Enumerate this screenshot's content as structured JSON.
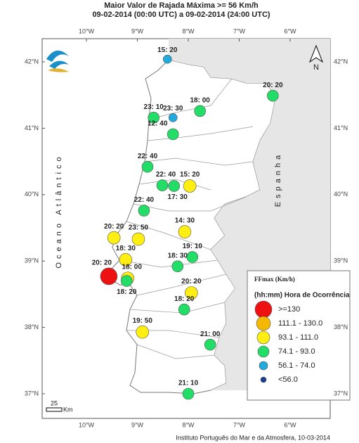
{
  "header": {
    "title": "Maior Valor de Rajada Máxima >= 56 Km/h",
    "subtitle": "09-02-2014 (00:00 UTC) a 09-02-2014 (24:00 UTC)"
  },
  "map": {
    "lon_ticks": [
      {
        "value": -10,
        "label": "10°W"
      },
      {
        "value": -9,
        "label": "9°W"
      },
      {
        "value": -8,
        "label": "8°W"
      },
      {
        "value": -7,
        "label": "7°W"
      },
      {
        "value": -6,
        "label": "6°W"
      }
    ],
    "lat_ticks": [
      {
        "value": 42,
        "label": "42°N"
      },
      {
        "value": 41,
        "label": "41°N"
      },
      {
        "value": 40,
        "label": "40°N"
      },
      {
        "value": 39,
        "label": "39°N"
      },
      {
        "value": 38,
        "label": "38°N"
      },
      {
        "value": 37,
        "label": "37°N"
      }
    ],
    "ocean": "Oceano Atlântico",
    "country": "Espanha",
    "north": "N",
    "stations": [
      {
        "time": "15: 20",
        "lon": -8.41,
        "lat": 42.04,
        "color": "#22aadd"
      },
      {
        "time": "20: 20",
        "lon": -6.34,
        "lat": 41.49,
        "color": "#22dd66"
      },
      {
        "time": "23: 10",
        "lon": -8.68,
        "lat": 41.16,
        "color": "#22dd66"
      },
      {
        "time": "23: 30",
        "lon": -8.3,
        "lat": 41.16,
        "color": "#22aadd"
      },
      {
        "time": "18: 00",
        "lon": -7.77,
        "lat": 41.26,
        "color": "#22dd66"
      },
      {
        "time": "12: 40",
        "lon": -8.3,
        "lat": 40.91,
        "color": "#22dd66"
      },
      {
        "time": "22: 40",
        "lon": -8.8,
        "lat": 40.42,
        "color": "#22dd66"
      },
      {
        "time": "22: 40",
        "lon": -8.51,
        "lat": 40.14,
        "color": "#22dd66"
      },
      {
        "time": "17: 30",
        "lon": -8.28,
        "lat": 40.13,
        "color": "#22dd66"
      },
      {
        "time": "15: 20",
        "lon": -7.97,
        "lat": 40.13,
        "color": "#ffee11"
      },
      {
        "time": "22: 40",
        "lon": -8.87,
        "lat": 39.76,
        "color": "#22dd66"
      },
      {
        "time": "20: 20",
        "lon": -9.46,
        "lat": 39.35,
        "color": "#ffee11"
      },
      {
        "time": "23: 50",
        "lon": -8.98,
        "lat": 39.33,
        "color": "#ffee11"
      },
      {
        "time": "14: 30",
        "lon": -8.07,
        "lat": 39.44,
        "color": "#ffee11"
      },
      {
        "time": "18: 30",
        "lon": -9.23,
        "lat": 39.02,
        "color": "#ffee11"
      },
      {
        "time": "19: 10",
        "lon": -7.92,
        "lat": 39.06,
        "color": "#22dd66"
      },
      {
        "time": "18: 30",
        "lon": -8.21,
        "lat": 38.92,
        "color": "#22dd66"
      },
      {
        "time": "20: 20",
        "lon": -9.56,
        "lat": 38.77,
        "color": "#ee1111"
      },
      {
        "time": "18: 00",
        "lon": -9.19,
        "lat": 38.74,
        "color": "#ffee11"
      },
      {
        "time": "18: 20",
        "lon": -9.21,
        "lat": 38.7,
        "color": "#22dd66"
      },
      {
        "time": "20: 20",
        "lon": -7.94,
        "lat": 38.52,
        "color": "#ffee11"
      },
      {
        "time": "18: 20",
        "lon": -8.08,
        "lat": 38.27,
        "color": "#22dd66"
      },
      {
        "time": "19: 50",
        "lon": -8.9,
        "lat": 37.93,
        "color": "#ffee11"
      },
      {
        "time": "21: 00",
        "lon": -7.57,
        "lat": 37.74,
        "color": "#22dd66"
      },
      {
        "time": "21: 10",
        "lon": -8.0,
        "lat": 37.0,
        "color": "#22dd66"
      }
    ]
  },
  "legend": {
    "title": "FFmax (Km/h)",
    "subtitle": "(hh:mm) Hora de Ocorrência",
    "items": [
      {
        "label": ">=130",
        "color": "#ee1111"
      },
      {
        "label": "111.1 - 130.0",
        "color": "#f5b800"
      },
      {
        "label": "93.1 - 111.0",
        "color": "#ffee11"
      },
      {
        "label": "74.1 - 93.0",
        "color": "#22dd66"
      },
      {
        "label": "56.1 - 74.0",
        "color": "#22aadd"
      },
      {
        "label": "<56.0",
        "color": "#1a3f8f"
      }
    ]
  },
  "scale": {
    "value": 25,
    "unit": "Km"
  },
  "footer": "Instituto Português do Mar e da Atmosfera, 10-03-2014"
}
